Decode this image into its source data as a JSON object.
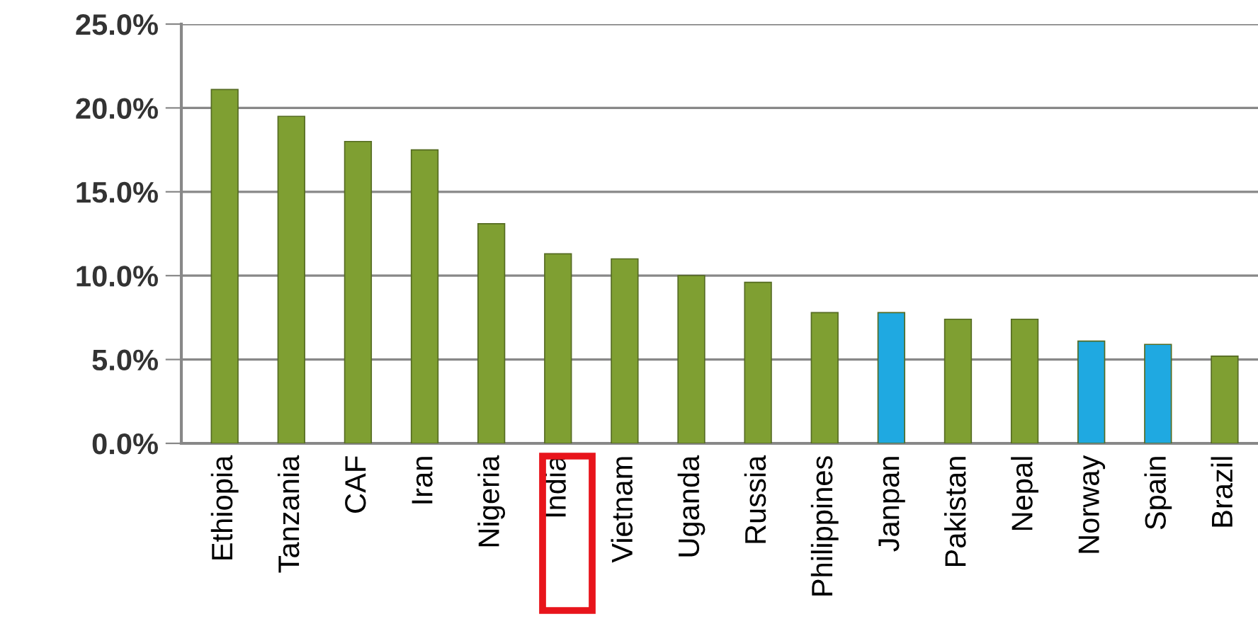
{
  "chart_data": {
    "type": "bar",
    "categories": [
      "Ethiopia",
      "Tanzania",
      "CAF",
      "Iran",
      "Nigeria",
      "India",
      "Vietnam",
      "Uganda",
      "Russia",
      "Philippines",
      "Janpan",
      "Pakistan",
      "Nepal",
      "Norway",
      "Spain",
      "Brazil"
    ],
    "values": [
      21.1,
      19.5,
      18.0,
      17.5,
      13.1,
      11.3,
      11.0,
      10.0,
      9.6,
      7.8,
      7.8,
      7.4,
      7.4,
      6.1,
      5.9,
      5.2
    ],
    "colors": [
      "#7f9f32",
      "#7f9f32",
      "#7f9f32",
      "#7f9f32",
      "#7f9f32",
      "#7f9f32",
      "#7f9f32",
      "#7f9f32",
      "#7f9f32",
      "#7f9f32",
      "#1fa9e1",
      "#7f9f32",
      "#7f9f32",
      "#1fa9e1",
      "#1fa9e1",
      "#7f9f32"
    ],
    "ylim": [
      0,
      25
    ],
    "yticks": [
      {
        "value": 0,
        "label": "0.0%"
      },
      {
        "value": 5,
        "label": "5.0%"
      },
      {
        "value": 10,
        "label": "10.0%"
      },
      {
        "value": 15,
        "label": "15.0%"
      },
      {
        "value": 20,
        "label": "20.0%"
      },
      {
        "value": 25,
        "label": "25.0%"
      }
    ],
    "grid": "y",
    "legend": false
  }
}
